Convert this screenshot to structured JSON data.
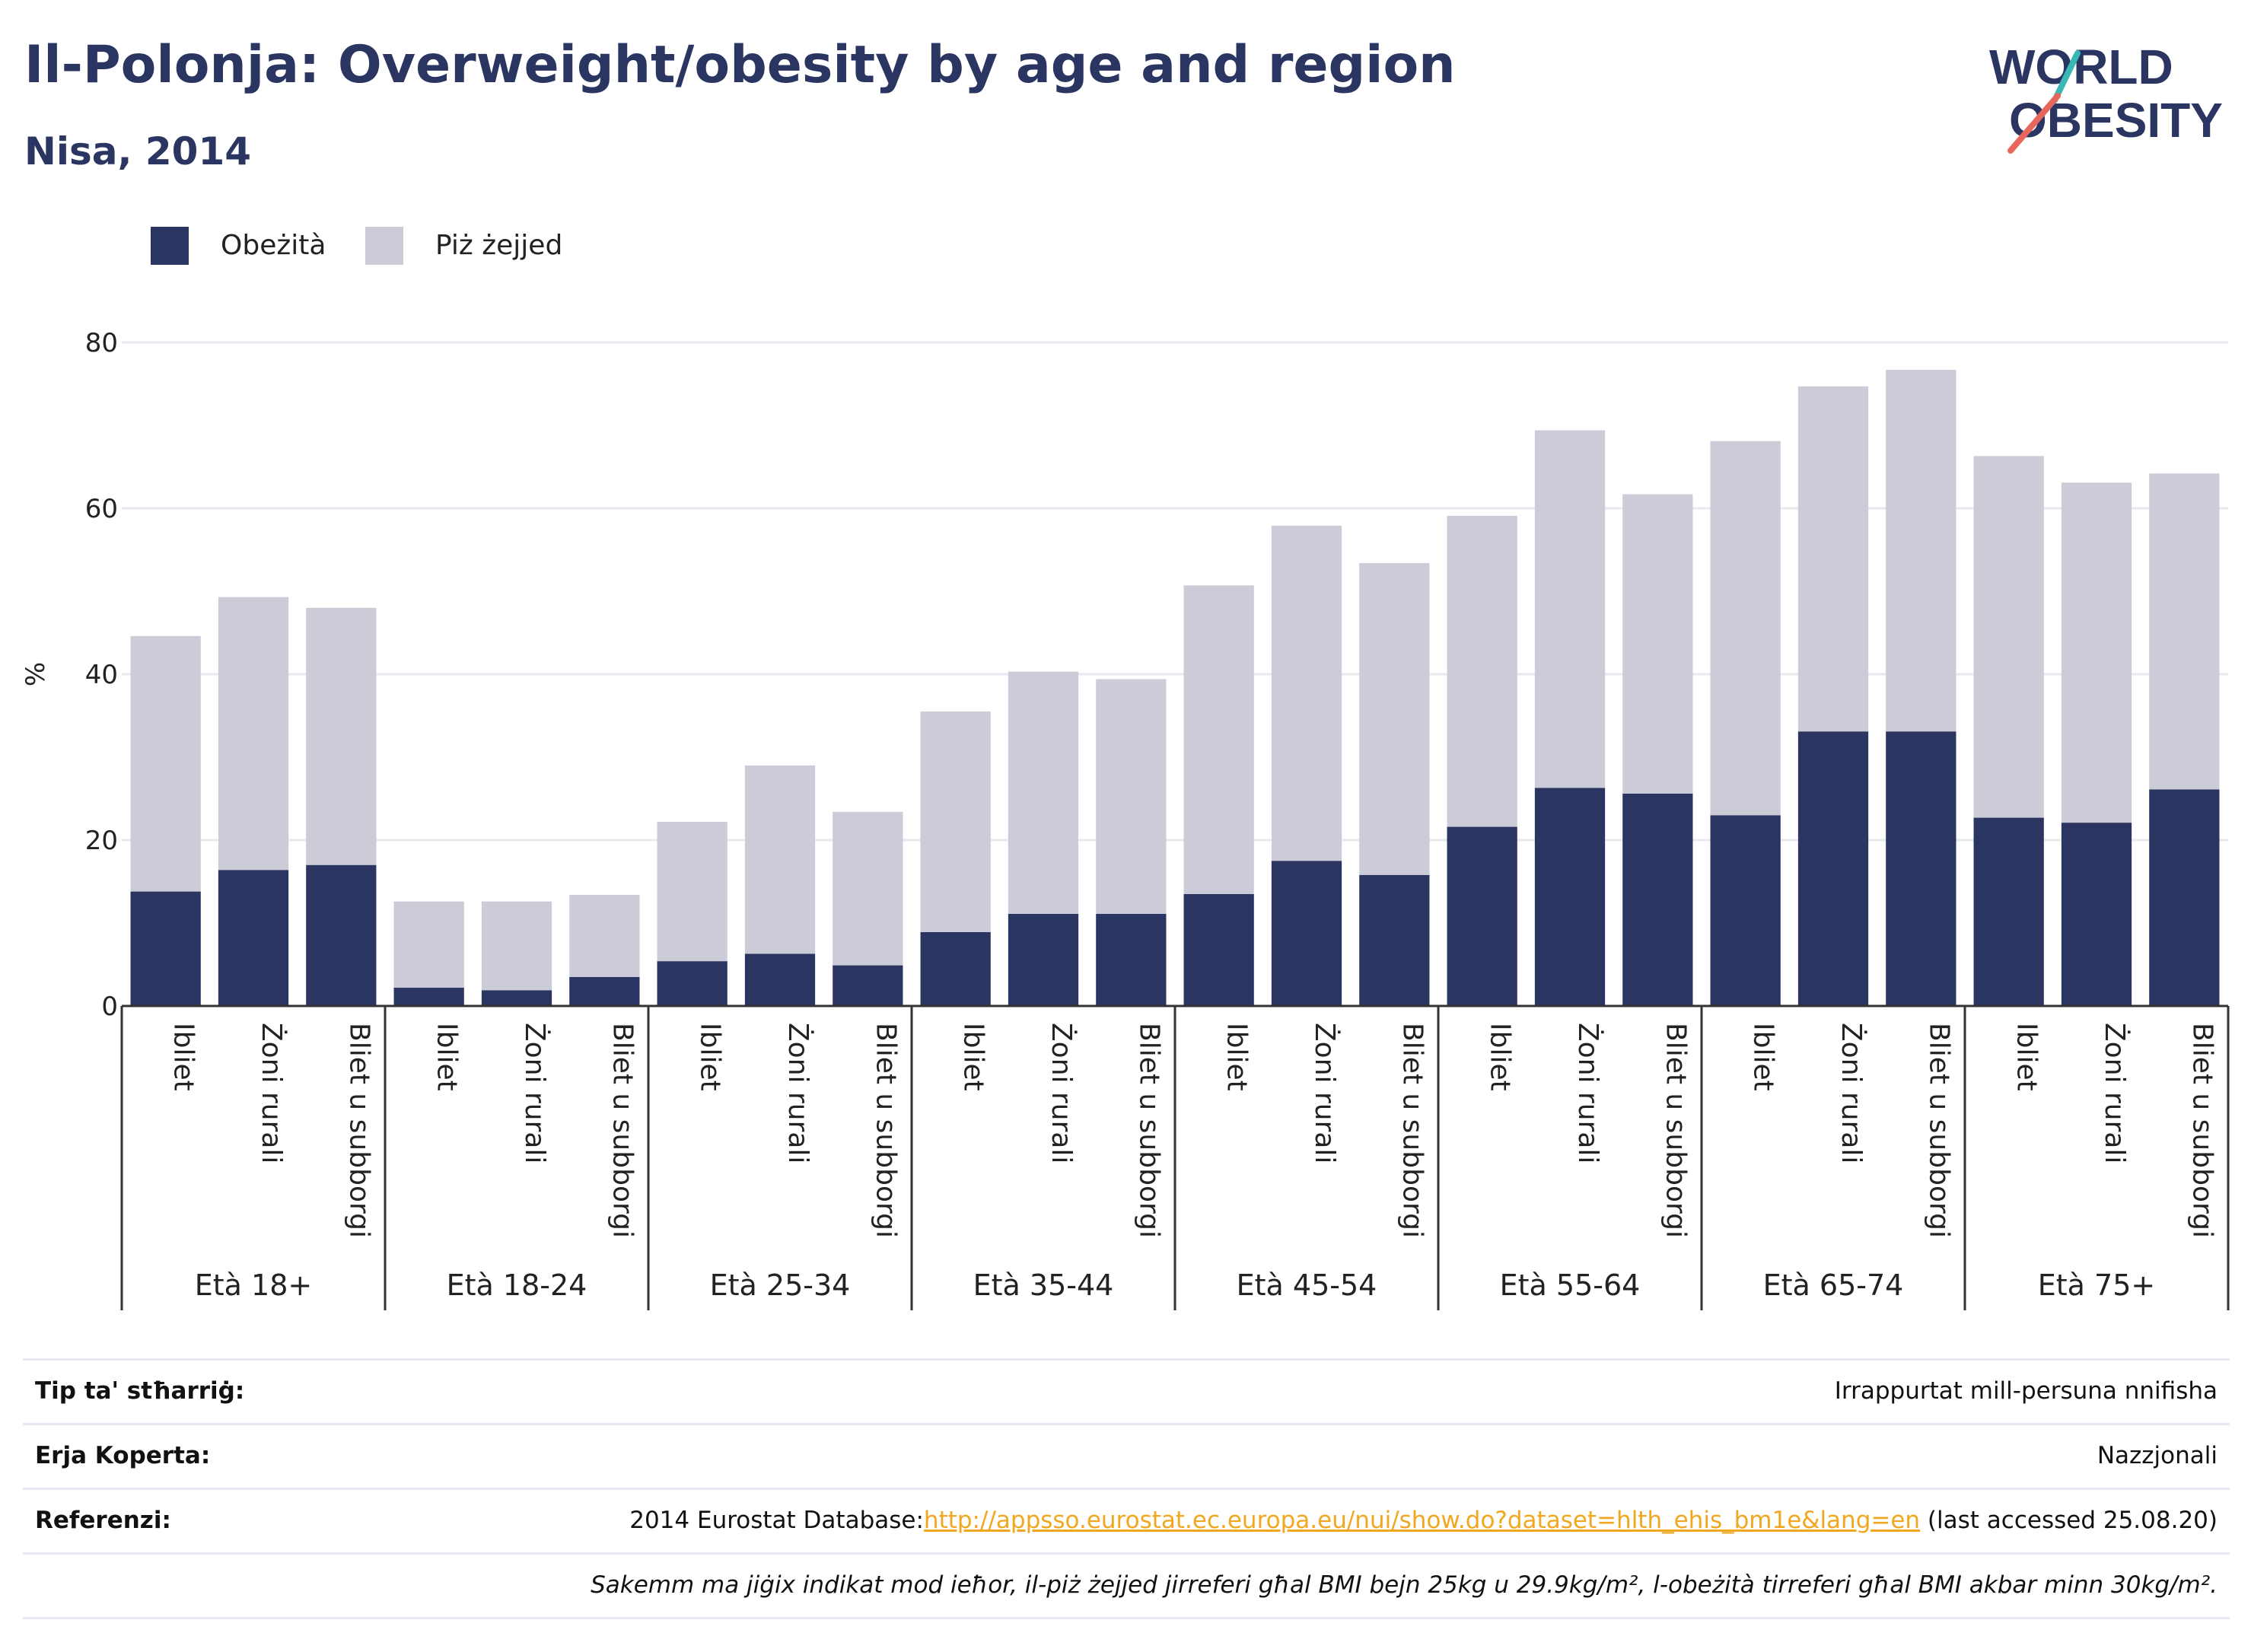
{
  "header": {
    "title": "Il-Polonja: Overweight/obesity by age and region",
    "subtitle": "Nisa, 2014"
  },
  "logo": {
    "line1": "WORLD",
    "line2": "OBESITY"
  },
  "legend": {
    "obesity": "Obeżità",
    "overweight": "Piż żejjed"
  },
  "colors": {
    "obesity": "#2b3561",
    "overweight": "#cbccd8",
    "logo_text": "#2b3561",
    "logo_slash_red": "#e8675c",
    "logo_slash_teal": "#39b7b4",
    "link": "#f1a720"
  },
  "chart_data": {
    "type": "bar",
    "stacked": true,
    "ylabel": "%",
    "ylim": [
      0,
      80
    ],
    "yticks": [
      0,
      20,
      40,
      60,
      80
    ],
    "grid": true,
    "legend_position": "top-left",
    "groups": [
      "Età 18+",
      "Età 18-24",
      "Età 25-34",
      "Età 35-44",
      "Età 45-54",
      "Età 55-64",
      "Età 65-74",
      "Età 75+"
    ],
    "categories_per_group": [
      "Ibliet",
      "Żoni rurali",
      "Bliet u subborgi"
    ],
    "series": [
      {
        "name": "Obeżità",
        "values": [
          13.8,
          16.4,
          17.0,
          2.2,
          1.9,
          3.5,
          5.4,
          6.3,
          4.9,
          8.9,
          11.1,
          11.1,
          13.5,
          17.5,
          15.8,
          21.6,
          26.3,
          25.6,
          23.0,
          33.1,
          33.1,
          22.7,
          22.1,
          26.1
        ]
      },
      {
        "name": "Piż żejjed",
        "values": [
          30.8,
          32.9,
          31.0,
          10.4,
          10.7,
          9.9,
          16.8,
          22.7,
          18.5,
          26.6,
          29.2,
          28.3,
          37.2,
          40.4,
          37.6,
          37.5,
          43.1,
          36.1,
          45.1,
          41.6,
          43.6,
          43.6,
          41.0,
          38.1
        ]
      }
    ]
  },
  "footer": {
    "rows": [
      {
        "key": "Tip ta' stħarriġ:",
        "value": "Irrappurtat mill-persuna nnifisha"
      },
      {
        "key": "Erja Koperta:",
        "value": "Nazzjonali"
      },
      {
        "key": "Referenzi:",
        "value_prefix": "2014 Eurostat Database:",
        "link": "http://appsso.eurostat.ec.europa.eu/nui/show.do?dataset=hlth_ehis_bm1e&lang=en",
        "value_suffix": " (last accessed 25.08.20)"
      }
    ],
    "note": "Sakemm ma jiġix indikat mod ieħor, il-piż żejjed jirreferi għal BMI bejn 25kg u 29.9kg/m², l-obeżità tirreferi għal BMI akbar minn 30kg/m²."
  }
}
